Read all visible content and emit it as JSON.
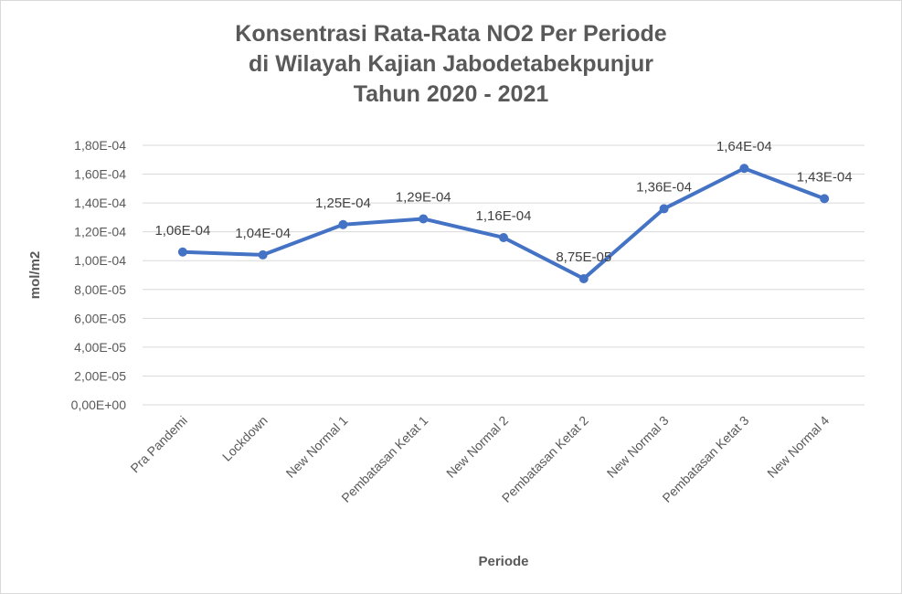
{
  "chart_data": {
    "type": "line",
    "title": [
      "Konsentrasi Rata-Rata NO2 Per Periode",
      "di Wilayah Kajian Jabodetabekpunjur",
      "Tahun 2020 - 2021"
    ],
    "xlabel": "Periode",
    "ylabel": "mol/m2",
    "ylim": [
      0,
      0.00018
    ],
    "yticks": [
      0,
      2e-05,
      4e-05,
      6e-05,
      8e-05,
      0.0001,
      0.00012,
      0.00014,
      0.00016,
      0.00018
    ],
    "ytick_labels": [
      "0,00E+00",
      "2,00E-05",
      "4,00E-05",
      "6,00E-05",
      "8,00E-05",
      "1,00E-04",
      "1,20E-04",
      "1,40E-04",
      "1,60E-04",
      "1,80E-04"
    ],
    "grid": true,
    "legend": "none",
    "categories": [
      "Pra Pandemi",
      "Lockdown",
      "New Normal 1",
      "Pembatasan Ketat 1",
      "New Normal 2",
      "Pembatasan Ketat 2",
      "New Normal 3",
      "Pembatasan Ketat 3",
      "New Normal 4"
    ],
    "series": [
      {
        "values": [
          0.000106,
          0.000104,
          0.000125,
          0.000129,
          0.000116,
          8.75e-05,
          0.000136,
          0.000164,
          0.000143
        ],
        "labels": [
          "1,06E-04",
          "1,04E-04",
          "1,25E-04",
          "1,29E-04",
          "1,16E-04",
          "8,75E-05",
          "1,36E-04",
          "1,64E-04",
          "1,43E-04"
        ],
        "color": "#4472c4"
      }
    ],
    "colors": {
      "grid": "#d9d9d9",
      "text": "#595959",
      "label": "#404040"
    }
  }
}
